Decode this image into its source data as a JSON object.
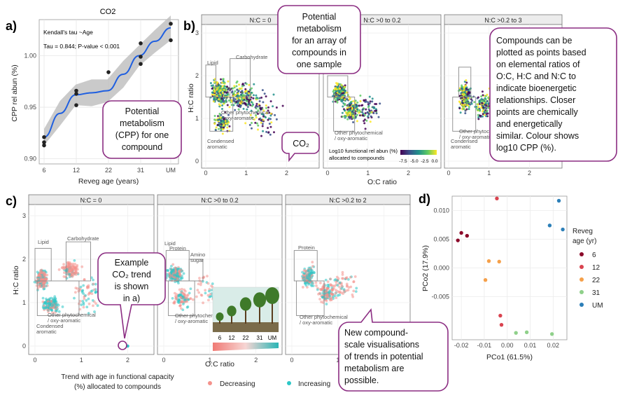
{
  "colors": {
    "callout_border": "#8B2D82",
    "line_blue": "#1f5fe0",
    "ribbon": "#bdbdbd",
    "decreasing": "#f4928c",
    "increasing": "#2cc7c7",
    "age_6": "#8b0a2a",
    "age_12": "#d9434f",
    "age_22": "#f5a04a",
    "age_31": "#8fd08a",
    "age_UM": "#2c7fb8"
  },
  "panel_a": {
    "letter": "a)",
    "title": "CO2",
    "stats_line1": "Kendall's tau ~Age",
    "stats_line2": "Tau = 0.844; P-value < 0.001",
    "ylabel": "CPP rel abun (%)",
    "xlabel": "Reveg age (years)",
    "callout": [
      "Potential",
      "metabolism",
      "(CPP) for one",
      "compound"
    ]
  },
  "panel_b": {
    "letter": "b)",
    "ylabel": "H:C ratio",
    "xlabel": "O:C ratio",
    "strips": [
      "N:C = 0",
      "N:C >0 to 0.2",
      "N:C >0.2 to 3"
    ],
    "x_ticks": [
      "0",
      "1",
      "2"
    ],
    "y_ticks": [
      "0",
      "1",
      "2",
      "3"
    ],
    "box_labels": {
      "lipid": "Lipid",
      "carbohydrate": "Carbohydrate",
      "other": [
        "Other phytochemical",
        "/ oxy-aromatic"
      ],
      "condensed": [
        "Condensed",
        "aromatic"
      ]
    },
    "colorbar": {
      "title_line1": "Log10 functional rel abun (%)",
      "title_line2": "allocated to compounds",
      "ticks": [
        "-7.5",
        "-5.0",
        "-2.5",
        "0.0"
      ]
    },
    "callout_top": [
      "Potential",
      "metabolism",
      "for an array of",
      "compounds in",
      "one sample"
    ],
    "callout_co2": "CO₂",
    "callout_right": [
      "Compounds can be",
      "plotted as points based",
      "on elemental ratios of",
      "O:C, H:C and N:C to",
      "indicate bioenergetic",
      "relationships. Closer",
      "points are chemically",
      "and energetically",
      "similar. Colour shows",
      "log10 CPP (%)."
    ]
  },
  "panel_c": {
    "letter": "c)",
    "ylabel": "H:C ratio",
    "xlabel": "O:C ratio",
    "strips": [
      "N:C = 0",
      "N:C >0 to 0.2",
      "N:C >0.2 to 2"
    ],
    "x_ticks": [
      "0",
      "1",
      "2"
    ],
    "y_ticks": [
      "0",
      "1",
      "2",
      "3"
    ],
    "box_labels": {
      "lipid": "Lipid",
      "carbohydrate": "Carbohydrate",
      "protein": "Protein",
      "amino": [
        "Amino",
        "sugar"
      ],
      "other": [
        "Other phytochemical",
        "/ oxy-aromatic"
      ],
      "condensed": [
        "Condensed",
        "aromatic"
      ]
    },
    "inset_ages": [
      "6",
      "12",
      "22",
      "31",
      "UM"
    ],
    "callout_example": [
      "Example",
      "CO₂ trend",
      "is shown",
      "in a)"
    ],
    "callout_new": [
      "New compound-",
      "scale visualisations",
      "of trends in potential",
      "metabolism are",
      "possible."
    ],
    "legend_title_line1": "Trend with age in functional capacity",
    "legend_title_line2": "(%) allocated to compounds",
    "legend_items": [
      "Decreasing",
      "Increasing"
    ]
  },
  "panel_d": {
    "letter": "d)",
    "xlabel": "PCo1 (61.5%)",
    "ylabel": "PCo2 (17.9%)",
    "legend_title_line1": "Reveg",
    "legend_title_line2": "age (yr)",
    "legend_items": [
      "6",
      "12",
      "22",
      "31",
      "UM"
    ]
  },
  "chart_data": [
    {
      "type": "scatter",
      "panel": "a",
      "title": "CO2",
      "xlabel": "Reveg age (years)",
      "ylabel": "CPP rel abun (%)",
      "x_ticks": [
        "6",
        "12",
        "22",
        "31",
        "UM"
      ],
      "y_ticks": [
        0.9,
        0.95,
        1.0
      ],
      "ylim": [
        0.895,
        1.035
      ],
      "points": [
        {
          "x": "6",
          "y": 0.921
        },
        {
          "x": "6",
          "y": 0.916
        },
        {
          "x": "6",
          "y": 0.913
        },
        {
          "x": "12",
          "y": 0.966
        },
        {
          "x": "12",
          "y": 0.963
        },
        {
          "x": "12",
          "y": 0.952
        },
        {
          "x": "22",
          "y": 0.984
        },
        {
          "x": "31",
          "y": 1.012
        },
        {
          "x": "31",
          "y": 0.999
        },
        {
          "x": "31",
          "y": 0.992
        },
        {
          "x": "UM",
          "y": 1.031
        },
        {
          "x": "UM",
          "y": 1.015
        }
      ],
      "smooth": [
        {
          "x": 0.0,
          "y": 0.921
        },
        {
          "x": 0.5,
          "y": 0.944
        },
        {
          "x": 1.0,
          "y": 0.962
        },
        {
          "x": 1.5,
          "y": 0.964
        },
        {
          "x": 2.0,
          "y": 0.966
        },
        {
          "x": 2.5,
          "y": 0.982
        },
        {
          "x": 3.0,
          "y": 1.0
        },
        {
          "x": 3.5,
          "y": 1.014
        },
        {
          "x": 4.0,
          "y": 1.027
        }
      ],
      "ribbon_halfwidth": [
        0.008,
        0.012,
        0.01,
        0.013,
        0.011,
        0.013,
        0.01,
        0.011,
        0.012
      ],
      "grid": true
    },
    {
      "type": "scatter",
      "panel": "d",
      "xlabel": "PCo1 (61.5%)",
      "ylabel": "PCo2 (17.9%)",
      "x_ticks": [
        -0.02,
        -0.01,
        0.0,
        0.01,
        0.02
      ],
      "y_ticks": [
        -0.005,
        0.0,
        0.005,
        0.01
      ],
      "xlim": [
        -0.024,
        0.026
      ],
      "ylim": [
        -0.0125,
        0.0125
      ],
      "grid": true,
      "legend": "right",
      "series": [
        {
          "name": "6",
          "points": [
            [
              -0.02,
              0.0061
            ],
            [
              -0.0175,
              0.0056
            ],
            [
              -0.0215,
              0.0048
            ]
          ]
        },
        {
          "name": "12",
          "points": [
            [
              -0.0045,
              0.0121
            ],
            [
              -0.003,
              -0.0083
            ],
            [
              -0.0025,
              -0.0099
            ]
          ]
        },
        {
          "name": "22",
          "points": [
            [
              -0.008,
              0.0012
            ],
            [
              -0.0035,
              0.0011
            ],
            [
              -0.0095,
              -0.0021
            ]
          ]
        },
        {
          "name": "31",
          "points": [
            [
              0.0038,
              -0.0113
            ],
            [
              0.0085,
              -0.0112
            ],
            [
              0.0195,
              -0.0115
            ]
          ]
        },
        {
          "name": "UM",
          "points": [
            [
              0.0225,
              0.0117
            ],
            [
              0.0185,
              0.0074
            ],
            [
              0.0242,
              0.0067
            ]
          ]
        }
      ]
    }
  ]
}
